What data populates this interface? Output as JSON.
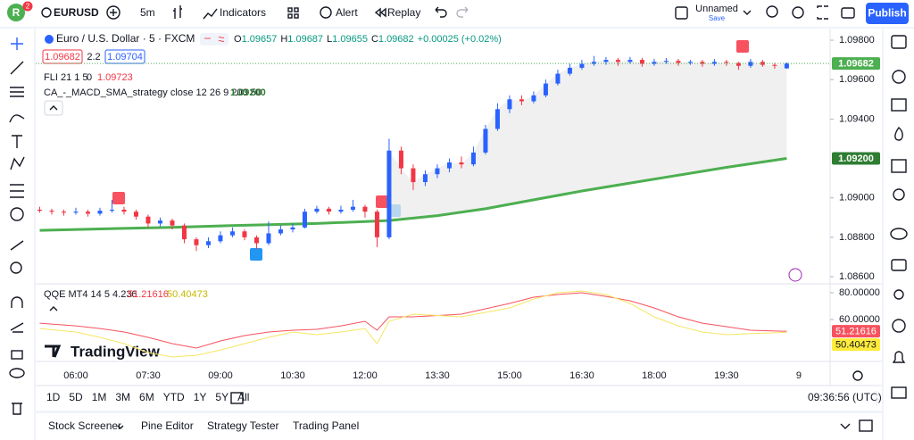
{
  "toolbar": {
    "avatar": "R",
    "badge": "2",
    "symbol": "EURUSD",
    "interval": "5m",
    "indicators": "Indicators",
    "alert": "Alert",
    "replay": "Replay",
    "layout_name": "Unnamed",
    "save": "Save",
    "publish": "Publish"
  },
  "legend": {
    "instrument": "Euro / U.S. Dollar · 5 · FXCM",
    "ohlc": [
      {
        "label": "O",
        "value": "1.09657"
      },
      {
        "label": "H",
        "value": "1.09687"
      },
      {
        "label": "L",
        "value": "1.09655"
      },
      {
        "label": "C",
        "value": "1.09682"
      }
    ],
    "change": "+0.00025 (+0.02%)",
    "sell": "1.09682",
    "spread": "2.2",
    "buy": "1.09704",
    "indicators": [
      {
        "name": "FLI 21 1 5",
        "param": "0",
        "value": "1.09723"
      },
      {
        "name": "CA_-_MACD_SMA_strategy close 12 26 9 200 50",
        "value": "1.09200"
      }
    ]
  },
  "chart_data": [
    {
      "type": "candlestick",
      "title": "Euro / U.S. Dollar · 5 · FXCM",
      "x": [
        5.25,
        5.5,
        5.75,
        6,
        6.25,
        6.5,
        6.75,
        7,
        7.25,
        7.5,
        7.75,
        8,
        8.25,
        8.5,
        8.75,
        9,
        9.25,
        9.5,
        9.75,
        10,
        10.25,
        10.5,
        10.75,
        11,
        11.25,
        11.5,
        11.75,
        12,
        12.25,
        12.5,
        12.75,
        13,
        13.25,
        13.5,
        13.75,
        14,
        14.25,
        14.5,
        14.75,
        15,
        15.25,
        15.5,
        15.75,
        16,
        16.25,
        16.5,
        16.75,
        17,
        17.25,
        17.5,
        17.75,
        18,
        18.25,
        18.5,
        18.75,
        19,
        19.25,
        19.5,
        19.75,
        20,
        20.25,
        20.5,
        20.75
      ],
      "open": [
        1.0894,
        1.08935,
        1.0893,
        1.08925,
        1.0893,
        1.0892,
        1.08935,
        1.0894,
        1.0893,
        1.08905,
        1.0887,
        1.08885,
        1.0886,
        1.0879,
        1.0876,
        1.0878,
        1.0881,
        1.0883,
        1.088,
        1.0877,
        1.0882,
        1.0884,
        1.0885,
        1.0893,
        1.08945,
        1.0893,
        1.0894,
        1.08955,
        1.0893,
        1.088,
        1.0924,
        1.0915,
        1.0908,
        1.0912,
        1.0915,
        1.0918,
        1.0917,
        1.0923,
        1.0935,
        1.0945,
        1.095,
        1.0949,
        1.0952,
        1.0958,
        1.0963,
        1.0966,
        1.0968,
        1.0969,
        1.097,
        1.0969,
        1.097,
        1.0968,
        1.0969,
        1.09695,
        1.09685,
        1.0969,
        1.0968,
        1.0969,
        1.09685,
        1.0967,
        1.0969,
        1.09675,
        1.09657
      ],
      "high": [
        1.08955,
        1.08945,
        1.0894,
        1.0895,
        1.0894,
        1.0895,
        1.0899,
        1.08955,
        1.0894,
        1.08915,
        1.089,
        1.08895,
        1.0887,
        1.088,
        1.088,
        1.0883,
        1.0885,
        1.0884,
        1.0881,
        1.0888,
        1.0886,
        1.0887,
        1.08945,
        1.0896,
        1.08955,
        1.0896,
        1.0899,
        1.08965,
        1.0894,
        1.093,
        1.0926,
        1.0917,
        1.0914,
        1.0917,
        1.092,
        1.0921,
        1.0926,
        1.0937,
        1.0948,
        1.0952,
        1.0952,
        1.0954,
        1.096,
        1.0965,
        1.0968,
        1.097,
        1.0972,
        1.09715,
        1.0971,
        1.09715,
        1.0971,
        1.09705,
        1.0971,
        1.09705,
        1.097,
        1.097,
        1.09705,
        1.097,
        1.0969,
        1.09705,
        1.097,
        1.09685,
        1.09687
      ],
      "low": [
        1.08925,
        1.08915,
        1.0891,
        1.08915,
        1.08905,
        1.0891,
        1.08925,
        1.08915,
        1.0889,
        1.0885,
        1.08855,
        1.0884,
        1.0877,
        1.0873,
        1.08745,
        1.0877,
        1.088,
        1.08785,
        1.0874,
        1.0876,
        1.0881,
        1.08825,
        1.08845,
        1.0892,
        1.08915,
        1.0892,
        1.0893,
        1.089,
        1.0875,
        1.0879,
        1.0912,
        1.0904,
        1.0906,
        1.091,
        1.0913,
        1.0915,
        1.0916,
        1.0922,
        1.0934,
        1.0943,
        1.0947,
        1.0948,
        1.0951,
        1.0957,
        1.0962,
        1.0965,
        1.0967,
        1.09675,
        1.0967,
        1.0968,
        1.09665,
        1.0967,
        1.0968,
        1.0967,
        1.09675,
        1.09665,
        1.0967,
        1.0967,
        1.0965,
        1.0966,
        1.09665,
        1.09655,
        1.09655
      ],
      "close": [
        1.08935,
        1.0893,
        1.08925,
        1.0893,
        1.0892,
        1.08935,
        1.0894,
        1.0893,
        1.08905,
        1.0887,
        1.08885,
        1.0886,
        1.0879,
        1.0876,
        1.0878,
        1.0881,
        1.0883,
        1.088,
        1.0877,
        1.0882,
        1.0884,
        1.0885,
        1.0893,
        1.08945,
        1.0893,
        1.0894,
        1.08955,
        1.0893,
        1.088,
        1.0924,
        1.0915,
        1.0908,
        1.0912,
        1.0915,
        1.0918,
        1.0917,
        1.0923,
        1.0935,
        1.0945,
        1.095,
        1.0949,
        1.0952,
        1.0958,
        1.0963,
        1.0966,
        1.0968,
        1.0969,
        1.097,
        1.0969,
        1.097,
        1.0968,
        1.0969,
        1.09695,
        1.09685,
        1.0969,
        1.0968,
        1.0969,
        1.09685,
        1.0967,
        1.0969,
        1.09675,
        1.0967,
        1.09682
      ],
      "up_color": "#2962ff",
      "down_color": "#f23645",
      "overlays": [
        {
          "color": "#4caf50",
          "x": [
            5.25,
            7,
            8,
            9,
            10,
            11,
            12,
            12.5,
            13.5,
            14.5,
            15.5,
            16.5,
            17.5,
            18.5,
            19.5,
            20.75
          ],
          "values": [
            1.08835,
            1.08845,
            1.0885,
            1.08858,
            1.08864,
            1.0887,
            1.0888,
            1.08885,
            1.0891,
            1.08945,
            1.0899,
            1.09035,
            1.09075,
            1.09115,
            1.09155,
            1.092
          ]
        }
      ],
      "price_labels": [
        {
          "value": 1.09682,
          "label": "1.09682",
          "color": "#4caf50"
        },
        {
          "value": 1.092,
          "label": "1.09200",
          "color": "#2e7d32"
        }
      ],
      "xlim": [
        5.167,
        21.65
      ],
      "xticks": [
        {
          "value": 6,
          "label": "06:00"
        },
        {
          "value": 7.5,
          "label": "07:30"
        },
        {
          "value": 9,
          "label": "09:00"
        },
        {
          "value": 10.5,
          "label": "10:30"
        },
        {
          "value": 12,
          "label": "12:00"
        },
        {
          "value": 13.5,
          "label": "13:30"
        },
        {
          "value": 15,
          "label": "15:00"
        },
        {
          "value": 16.5,
          "label": "16:30"
        },
        {
          "value": 18,
          "label": "18:00"
        },
        {
          "value": 19.5,
          "label": "19:30"
        },
        {
          "value": 21,
          "label": "9"
        }
      ],
      "ylim": [
        1.08564,
        1.09859
      ],
      "yticks": [
        {
          "value": 1.098,
          "label": "1.09800"
        },
        {
          "value": 1.096,
          "label": "1.09600"
        },
        {
          "value": 1.094,
          "label": "1.09400"
        },
        {
          "value": 1.09,
          "label": "1.09000"
        },
        {
          "value": 1.088,
          "label": "1.08800"
        },
        {
          "value": 1.086,
          "label": "1.08600"
        }
      ],
      "grid": false
    },
    {
      "type": "line",
      "title": "QQE MT4 14 5 4.236",
      "x": [
        5.25,
        6,
        6.5,
        7,
        7.5,
        8,
        8.5,
        9,
        9.5,
        10,
        10.5,
        11,
        11.5,
        12,
        12.25,
        12.5,
        13,
        14,
        15,
        15.5,
        16,
        16.5,
        17,
        17.5,
        18,
        18.5,
        19,
        19.5,
        20,
        20.75
      ],
      "series": [
        {
          "color": "#f7525f",
          "end_label": "51.21616",
          "values": [
            57.3,
            55.3,
            53.3,
            50.7,
            46.7,
            42,
            38.7,
            44,
            48,
            50.7,
            52,
            52.7,
            55.3,
            58.7,
            52,
            62,
            62,
            64,
            72,
            76.7,
            78.7,
            80,
            77.3,
            74,
            68.7,
            62,
            57.3,
            54.7,
            52,
            51.21616
          ]
        },
        {
          "color": "#f5e663",
          "end_label": "50.40473",
          "values": [
            53.3,
            50.7,
            46.7,
            42,
            35.3,
            32,
            33.3,
            37.3,
            42,
            46.7,
            50.7,
            48.7,
            50.7,
            53.3,
            42,
            58.7,
            64,
            62,
            68.7,
            75.3,
            80,
            81.3,
            78.7,
            72,
            62,
            55.3,
            50.7,
            48.7,
            49.5,
            50.40473
          ]
        }
      ],
      "xlim": [
        5.167,
        21.65
      ],
      "ylim": [
        28.67,
        86.67
      ],
      "yticks": [
        {
          "value": 80,
          "label": "80.00000"
        },
        {
          "value": 60,
          "label": "60.00000"
        }
      ],
      "grid": false
    }
  ],
  "watermark": "TradingView",
  "time_range": [
    "1D",
    "5D",
    "1M",
    "3M",
    "6M",
    "YTD",
    "1Y",
    "5Y",
    "All"
  ],
  "clock": "09:36:56 (UTC)",
  "bottom_tabs": [
    "Stock Screener",
    "Pine Editor",
    "Strategy Tester",
    "Trading Panel"
  ]
}
